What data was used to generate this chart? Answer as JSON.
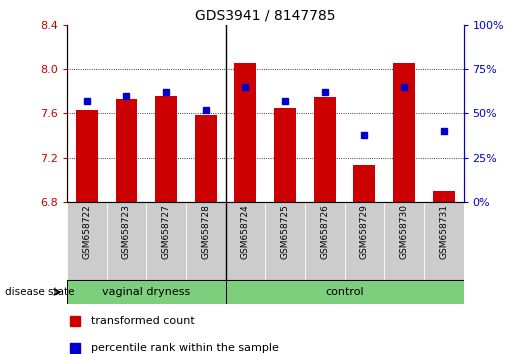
{
  "title": "GDS3941 / 8147785",
  "samples": [
    "GSM658722",
    "GSM658723",
    "GSM658727",
    "GSM658728",
    "GSM658724",
    "GSM658725",
    "GSM658726",
    "GSM658729",
    "GSM658730",
    "GSM658731"
  ],
  "red_values": [
    7.63,
    7.73,
    7.76,
    7.58,
    8.05,
    7.65,
    7.75,
    7.13,
    8.05,
    6.9
  ],
  "blue_values": [
    57,
    60,
    62,
    52,
    65,
    57,
    62,
    38,
    65,
    40
  ],
  "ylim_left": [
    6.8,
    8.4
  ],
  "ylim_right": [
    0,
    100
  ],
  "yticks_left": [
    6.8,
    7.2,
    7.6,
    8.0,
    8.4
  ],
  "yticks_right": [
    0,
    25,
    50,
    75,
    100
  ],
  "bar_color": "#cc0000",
  "dot_color": "#0000cc",
  "baseline": 6.8,
  "divider_x": 3.5,
  "groups": [
    {
      "label": "vaginal dryness",
      "start": 0,
      "end": 4
    },
    {
      "label": "control",
      "start": 4,
      "end": 10
    }
  ],
  "group_color": "#7dce7d",
  "legend_items": [
    {
      "label": "transformed count",
      "color": "#cc0000"
    },
    {
      "label": "percentile rank within the sample",
      "color": "#0000cc"
    }
  ],
  "disease_state_label": "disease state",
  "left_axis_color": "#cc0000",
  "right_axis_color": "#0000cc",
  "title_fontsize": 10,
  "bar_width": 0.55,
  "sample_bg_color": "#cccccc",
  "xlim": [
    -0.5,
    9.5
  ]
}
